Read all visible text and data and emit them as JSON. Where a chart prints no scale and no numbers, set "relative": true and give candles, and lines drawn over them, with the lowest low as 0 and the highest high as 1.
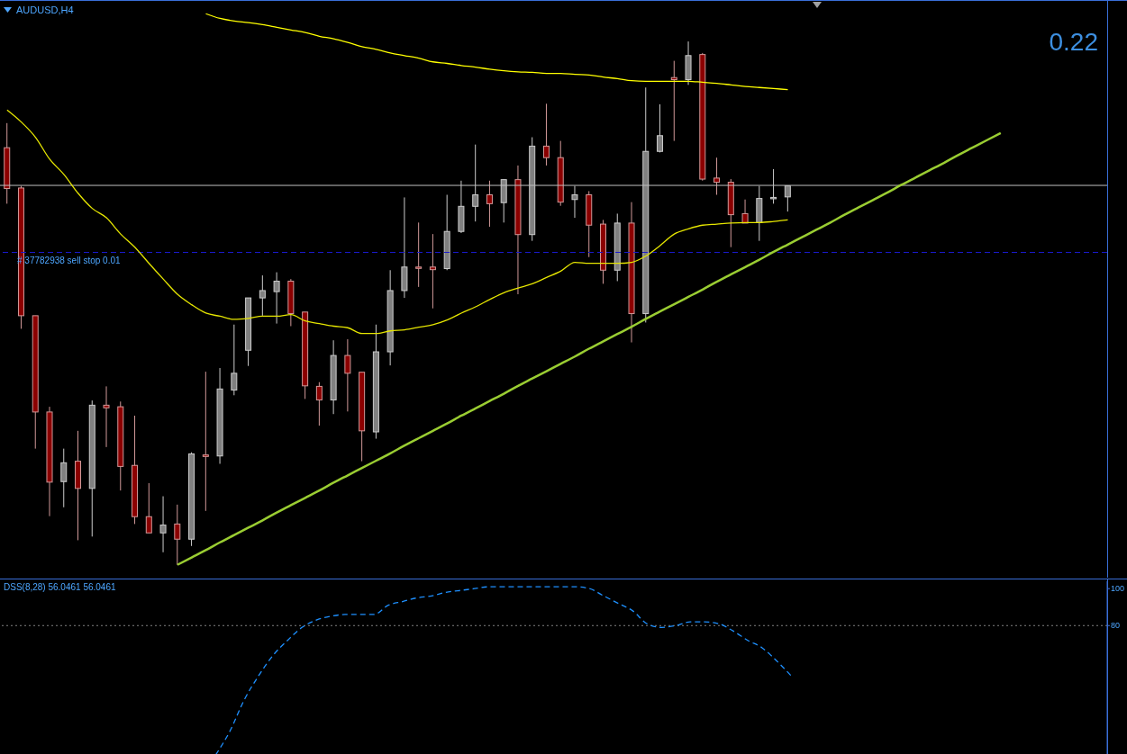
{
  "chart_data": [
    {
      "type": "candlestick",
      "title": "AUDUSD,H4",
      "relative": true,
      "categories": [
        null,
        null,
        null,
        null,
        null,
        null,
        null,
        null,
        null,
        null,
        null,
        null,
        null,
        null,
        null,
        null,
        null,
        null,
        null,
        null,
        null,
        null,
        null,
        null,
        null,
        null,
        null,
        null,
        null,
        null,
        null,
        null,
        null,
        null,
        null,
        null,
        null,
        null,
        null,
        null,
        null,
        null,
        null,
        null,
        null,
        null,
        null,
        null,
        null,
        null,
        null,
        null,
        null,
        null,
        null,
        null,
        null,
        null,
        null,
        null,
        null,
        null,
        null,
        null,
        null,
        null,
        null,
        null,
        null,
        null,
        null,
        null,
        null,
        null,
        null,
        null,
        null,
        null
      ],
      "ohlc": [
        [
          0.797,
          0.844,
          0.69,
          0.719
        ],
        [
          0.72,
          0.724,
          0.451,
          0.476
        ],
        [
          0.476,
          0.476,
          0.222,
          0.292
        ],
        [
          0.292,
          0.302,
          0.093,
          0.158
        ],
        [
          0.159,
          0.222,
          0.11,
          0.195
        ],
        [
          0.198,
          0.256,
          0.047,
          0.146
        ],
        [
          0.146,
          0.314,
          0.054,
          0.305
        ],
        [
          0.305,
          0.341,
          0.225,
          0.3
        ],
        [
          0.302,
          0.312,
          0.142,
          0.188
        ],
        [
          0.19,
          0.285,
          0.078,
          0.092
        ],
        [
          0.092,
          0.156,
          0.061,
          0.061
        ],
        [
          0.061,
          0.131,
          0.024,
          0.076
        ],
        [
          0.078,
          0.115,
          0,
          0.049
        ],
        [
          0.049,
          0.215,
          0.036,
          0.212
        ],
        [
          0.21,
          0.369,
          0.103,
          0.207
        ],
        [
          0.208,
          0.376,
          0.193,
          0.336
        ],
        [
          0.334,
          0.459,
          0.324,
          0.366
        ],
        [
          0.41,
          0.51,
          0.38,
          0.51
        ],
        [
          0.51,
          0.553,
          0.476,
          0.524
        ],
        [
          0.522,
          0.559,
          0.461,
          0.542
        ],
        [
          0.542,
          0.546,
          0.456,
          0.48
        ],
        [
          0.483,
          0.483,
          0.317,
          0.342
        ],
        [
          0.341,
          0.349,
          0.266,
          0.315
        ],
        [
          0.315,
          0.429,
          0.288,
          0.4
        ],
        [
          0.4,
          0.431,
          0.293,
          0.366
        ],
        [
          0.368,
          0.368,
          0.198,
          0.256
        ],
        [
          0.254,
          0.459,
          0.241,
          0.407
        ],
        [
          0.407,
          0.563,
          0.381,
          0.524
        ],
        [
          0.524,
          0.702,
          0.51,
          0.569
        ],
        [
          0.569,
          0.654,
          0.531,
          0.568
        ],
        [
          0.569,
          0.632,
          0.49,
          0.564
        ],
        [
          0.566,
          0.707,
          0.563,
          0.637
        ],
        [
          0.637,
          0.734,
          0.634,
          0.685
        ],
        [
          0.685,
          0.803,
          0.656,
          0.707
        ],
        [
          0.707,
          0.734,
          0.646,
          0.69
        ],
        [
          0.692,
          0.737,
          0.654,
          0.736
        ],
        [
          0.736,
          0.763,
          0.517,
          0.631
        ],
        [
          0.631,
          0.817,
          0.619,
          0.8
        ],
        [
          0.8,
          0.881,
          0.763,
          0.778
        ],
        [
          0.778,
          0.81,
          0.686,
          0.693
        ],
        [
          0.698,
          0.724,
          0.663,
          0.707
        ],
        [
          0.707,
          0.714,
          0.588,
          0.649
        ],
        [
          0.651,
          0.659,
          0.537,
          0.563
        ],
        [
          0.563,
          0.671,
          0.542,
          0.653
        ],
        [
          0.653,
          0.693,
          0.425,
          0.48
        ],
        [
          0.48,
          0.912,
          0.463,
          0.79
        ],
        [
          0.79,
          0.88,
          0.788,
          0.82
        ],
        [
          0.931,
          0.963,
          0.81,
          0.927
        ],
        [
          0.927,
          1,
          0.917,
          0.973
        ],
        [
          0.975,
          0.978,
          0.734,
          0.737
        ],
        [
          0.739,
          0.778,
          0.707,
          0.731
        ],
        [
          0.731,
          0.737,
          0.607,
          0.669
        ],
        [
          0.671,
          0.698,
          0.653,
          0.653
        ],
        [
          0.654,
          0.724,
          0.619,
          0.7
        ],
        [
          0.7,
          0.756,
          0.69,
          0.702
        ],
        [
          0.703,
          0.724,
          0.675,
          0.724
        ],
        null,
        null,
        null,
        null,
        null,
        null,
        null,
        null,
        null,
        null,
        null,
        null,
        null,
        null,
        null,
        null,
        null,
        null,
        null,
        null,
        null,
        null
      ],
      "colors": [
        "#8b0000",
        "#8b0000",
        "#8b0000",
        "#8b0000",
        "#808080",
        "#8b0000",
        "#808080",
        "#8b0000",
        "#8b0000",
        "#8b0000",
        "#8b0000",
        "#808080",
        "#8b0000",
        "#808080",
        "#8b0000",
        "#808080",
        "#808080",
        "#808080",
        "#808080",
        "#808080",
        "#8b0000",
        "#8b0000",
        "#8b0000",
        "#808080",
        "#8b0000",
        "#8b0000",
        "#808080",
        "#808080",
        "#808080",
        "#8b0000",
        "#8b0000",
        "#808080",
        "#808080",
        "#808080",
        "#8b0000",
        "#808080",
        "#8b0000",
        "#808080",
        "#8b0000",
        "#8b0000",
        "#808080",
        "#8b0000",
        "#8b0000",
        "#808080",
        "#8b0000",
        "#808080",
        "#808080",
        "#8b0000",
        "#808080",
        "#8b0000",
        "#8b0000",
        "#8b0000",
        "#8b0000",
        "#808080",
        "#808080",
        "#808080",
        null,
        null,
        null,
        null,
        null,
        null,
        null,
        null,
        null,
        null,
        null,
        null,
        null,
        null,
        null,
        null,
        null,
        null,
        null,
        null,
        null,
        null
      ],
      "series": [
        {
          "type": "line",
          "color": "#ffff00",
          "values": [
            null,
            null,
            null,
            null,
            null,
            null,
            null,
            null,
            null,
            null,
            null,
            null,
            null,
            null,
            1.053,
            1.044,
            1.039,
            1.036,
            1.032,
            1.027,
            1.022,
            1.017,
            1.01,
            1.005,
            0.998,
            0.99,
            0.985,
            0.978,
            0.973,
            0.968,
            0.961,
            0.958,
            0.954,
            0.951,
            0.947,
            0.944,
            0.942,
            0.941,
            0.939,
            0.939,
            0.937,
            0.936,
            0.932,
            0.929,
            0.925,
            0.924,
            0.924,
            0.924,
            0.924,
            0.922,
            0.92,
            0.917,
            0.914,
            0.912,
            0.91,
            0.908,
            null,
            null,
            null,
            null,
            null,
            null,
            null,
            null,
            null,
            null,
            null,
            null,
            null,
            null,
            null,
            null,
            null,
            null,
            null,
            null,
            null,
            null
          ]
        },
        {
          "type": "line",
          "color": "#e6e600",
          "values": [
            0.869,
            0.846,
            0.817,
            0.775,
            0.746,
            0.71,
            0.681,
            0.663,
            0.632,
            0.607,
            0.576,
            0.546,
            0.517,
            0.497,
            0.481,
            0.475,
            0.469,
            0.471,
            0.475,
            0.475,
            0.478,
            0.466,
            0.461,
            0.456,
            0.453,
            0.442,
            0.442,
            0.447,
            0.449,
            0.454,
            0.459,
            0.468,
            0.481,
            0.493,
            0.507,
            0.52,
            0.529,
            0.537,
            0.549,
            0.561,
            0.578,
            0.576,
            0.576,
            0.576,
            0.578,
            0.59,
            0.61,
            0.632,
            0.642,
            0.649,
            0.651,
            0.653,
            0.654,
            0.654,
            0.656,
            0.659,
            null,
            null,
            null,
            null,
            null,
            null,
            null,
            null,
            null,
            null,
            null,
            null,
            null,
            null,
            null,
            null,
            null,
            null,
            null,
            null,
            null,
            null
          ]
        },
        {
          "type": "line",
          "color": "#9acd32",
          "values": [
            null,
            null,
            null,
            null,
            null,
            null,
            null,
            null,
            null,
            null,
            null,
            null,
            0,
            0.014,
            0.028,
            0.043,
            0.057,
            0.071,
            0.085,
            0.1,
            0.114,
            0.128,
            0.142,
            0.157,
            0.171,
            0.185,
            0.199,
            0.213,
            0.228,
            0.242,
            0.256,
            0.27,
            0.285,
            0.299,
            0.313,
            0.327,
            0.342,
            0.356,
            0.37,
            0.384,
            0.398,
            0.413,
            0.427,
            0.441,
            0.455,
            0.47,
            0.484,
            0.498,
            0.512,
            0.526,
            0.541,
            0.555,
            0.569,
            0.583,
            0.598,
            0.612,
            0.626,
            0.64,
            0.654,
            0.669,
            0.683,
            0.697,
            0.711,
            0.726,
            0.74,
            0.754,
            0.768,
            0.783,
            0.797,
            0.811,
            0.825,
            null,
            null,
            null,
            null,
            null,
            null,
            null
          ]
        }
      ],
      "ref_lines": [
        {
          "axis": "y",
          "value": 0.725,
          "color": "#c0c0c0",
          "line_style": "solid"
        },
        {
          "axis": "y",
          "value": 0.597,
          "color": "#1a1acc",
          "line_style": "dashed",
          "label": "# 37782938 sell stop 0.01"
        }
      ],
      "annotations": [
        "0.22"
      ]
    },
    {
      "type": "line",
      "title": "DSS(8,28) 56.0461 56.0461",
      "line_style": "dashed",
      "ylim": [
        10,
        104
      ],
      "yticks": [
        80,
        100
      ],
      "categories": [
        null,
        null,
        null,
        null,
        null,
        null,
        null,
        null,
        null,
        null,
        null,
        null,
        null,
        null,
        null,
        null,
        null,
        null,
        null,
        null,
        null,
        null,
        null,
        null,
        null,
        null,
        null,
        null,
        null,
        null,
        null,
        null,
        null,
        null,
        null,
        null,
        null,
        null,
        null,
        null,
        null,
        null,
        null,
        null,
        null,
        null,
        null,
        null,
        null,
        null,
        null,
        null,
        null,
        null,
        null,
        null,
        null,
        null,
        null,
        null,
        null,
        null,
        null,
        null,
        null,
        null,
        null,
        null,
        null,
        null,
        null,
        null,
        null,
        null,
        null,
        null,
        null,
        null
      ],
      "series": [
        {
          "color": "#1e90ff",
          "values": [
            null,
            null,
            null,
            null,
            null,
            null,
            null,
            null,
            null,
            null,
            null,
            null,
            null,
            null,
            null,
            10,
            23,
            40,
            53,
            64,
            72,
            79,
            83,
            85,
            86,
            86,
            86,
            91,
            93,
            95,
            96,
            98,
            99,
            100,
            101,
            101,
            101,
            101,
            101,
            101,
            101,
            100,
            96,
            92,
            88,
            81,
            79,
            80,
            82,
            82,
            81,
            77,
            72,
            68,
            61,
            53,
            null,
            null,
            null,
            null,
            null,
            null,
            null,
            null,
            null,
            null,
            null,
            null,
            null,
            null,
            null,
            null,
            null,
            null,
            null,
            null,
            null,
            null
          ]
        }
      ],
      "ref_lines": [
        {
          "axis": "y",
          "value": 80,
          "color": "#808080",
          "line_style": "dotted"
        }
      ]
    }
  ]
}
